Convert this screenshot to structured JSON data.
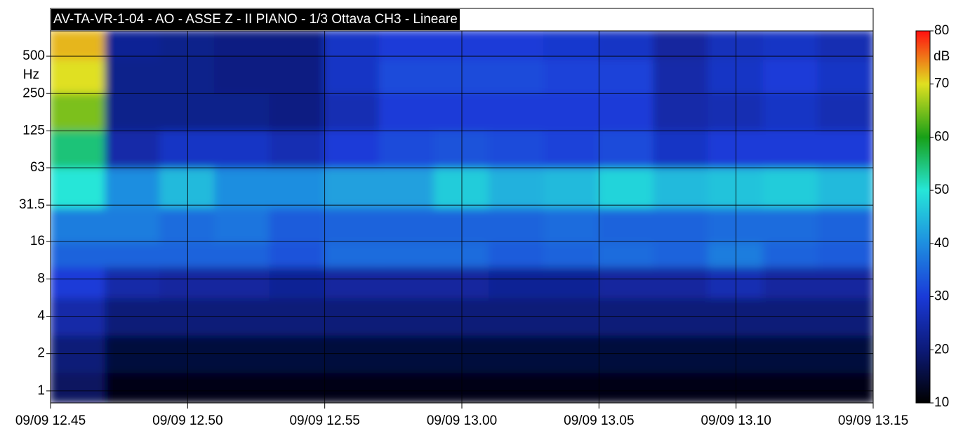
{
  "chart_data": {
    "type": "spectrogram",
    "title": "AV-TA-VR-1-04 - AO - ASSE Z - II PIANO - 1/3 Ottava CH3 - Lineare",
    "ylabel": "Hz",
    "ylog": true,
    "grid": true,
    "x": [
      766,
      768,
      770,
      772,
      774,
      776,
      778,
      780,
      782,
      784,
      786,
      788,
      790,
      792,
      794
    ],
    "y": [
      1,
      2,
      4,
      8,
      12.5,
      20,
      45,
      90,
      180,
      360,
      630
    ],
    "values": [
      [
        18,
        12,
        12,
        12,
        12,
        12,
        12,
        12,
        12,
        12,
        12,
        12,
        12,
        12,
        12
      ],
      [
        20,
        15,
        15,
        15,
        15,
        15,
        15,
        15,
        15,
        15,
        15,
        15,
        15,
        15,
        15
      ],
      [
        25,
        20,
        20,
        20,
        20,
        20,
        20,
        20,
        20,
        20,
        20,
        20,
        20,
        20,
        20
      ],
      [
        30,
        25,
        24,
        24,
        23,
        24,
        24,
        24,
        23,
        23,
        24,
        24,
        26,
        24,
        24
      ],
      [
        35,
        35,
        35,
        35,
        33,
        36,
        36,
        36,
        34,
        35,
        36,
        35,
        38,
        35,
        34
      ],
      [
        38,
        38,
        36,
        37,
        34,
        35,
        35,
        35,
        35,
        36,
        35,
        35,
        36,
        36,
        35
      ],
      [
        50,
        40,
        45,
        40,
        40,
        42,
        42,
        47,
        44,
        45,
        48,
        45,
        46,
        47,
        45
      ],
      [
        55,
        25,
        28,
        28,
        26,
        30,
        32,
        33,
        32,
        31,
        32,
        28,
        30,
        30,
        30
      ],
      [
        65,
        22,
        22,
        22,
        21,
        26,
        30,
        30,
        30,
        30,
        30,
        25,
        26,
        28,
        26
      ],
      [
        70,
        22,
        22,
        21,
        21,
        28,
        32,
        32,
        32,
        31,
        31,
        25,
        28,
        30,
        28
      ],
      [
        72,
        23,
        22,
        21,
        21,
        28,
        30,
        30,
        30,
        29,
        28,
        24,
        27,
        28,
        26
      ]
    ],
    "xlim": [
      765,
      795
    ],
    "ylim": [
      0.8,
      800
    ],
    "xticks": [
      {
        "value": 765,
        "label": "09/09 12.45"
      },
      {
        "value": 770,
        "label": "09/09 12.50"
      },
      {
        "value": 775,
        "label": "09/09 12.55"
      },
      {
        "value": 780,
        "label": "09/09 13.00"
      },
      {
        "value": 785,
        "label": "09/09 13.05"
      },
      {
        "value": 790,
        "label": "09/09 13.10"
      },
      {
        "value": 795,
        "label": "09/09 13.15"
      }
    ],
    "yticks": [
      1,
      2,
      4,
      8,
      16,
      31.5,
      63,
      125,
      250,
      500
    ],
    "zlim": [
      10,
      80
    ],
    "zticks": [
      10,
      20,
      30,
      40,
      50,
      60,
      70,
      80
    ],
    "zlabel": "dB",
    "colors": [
      "#000000",
      "#0c1a78",
      "#1a3ad8",
      "#1e8ee0",
      "#26e6d8",
      "#18a018",
      "#e0e020",
      "#ff1010"
    ]
  }
}
